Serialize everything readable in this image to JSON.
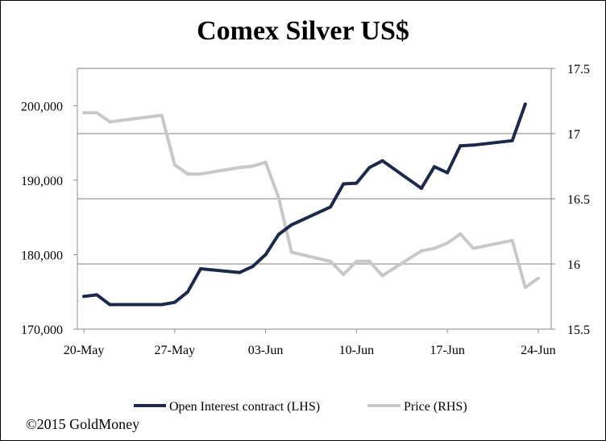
{
  "chart_data": {
    "type": "line",
    "title": "Comex Silver US$",
    "x_tick_labels": [
      "20-May",
      "27-May",
      "03-Jun",
      "10-Jun",
      "17-Jun",
      "24-Jun"
    ],
    "x_tick_days": [
      0,
      7,
      14,
      21,
      28,
      35
    ],
    "y_left": {
      "ticks": [
        "170,000",
        "180,000",
        "190,000",
        "200,000"
      ],
      "tick_values": [
        170000,
        180000,
        190000,
        200000
      ],
      "range": [
        170000,
        205000
      ]
    },
    "y_right": {
      "ticks": [
        "15.5",
        "16",
        "16.5",
        "17",
        "17.5"
      ],
      "tick_values": [
        15.5,
        16,
        16.5,
        17,
        17.5
      ],
      "range": [
        15.5,
        17.5
      ]
    },
    "grid": "horizontal",
    "legend_position": "bottom",
    "series": [
      {
        "name": "Open Interest contract (LHS)",
        "axis": "left",
        "color": "#1b2a4a",
        "points": [
          {
            "x": "2015-05-20",
            "y": 174400
          },
          {
            "x": "2015-05-21",
            "y": 174600
          },
          {
            "x": "2015-05-22",
            "y": 173300
          },
          {
            "x": "2015-05-26",
            "y": 173300
          },
          {
            "x": "2015-05-27",
            "y": 173600
          },
          {
            "x": "2015-05-28",
            "y": 175000
          },
          {
            "x": "2015-05-29",
            "y": 178100
          },
          {
            "x": "2015-06-01",
            "y": 177600
          },
          {
            "x": "2015-06-02",
            "y": 178400
          },
          {
            "x": "2015-06-03",
            "y": 180000
          },
          {
            "x": "2015-06-04",
            "y": 182700
          },
          {
            "x": "2015-06-05",
            "y": 184000
          },
          {
            "x": "2015-06-08",
            "y": 186400
          },
          {
            "x": "2015-06-09",
            "y": 189500
          },
          {
            "x": "2015-06-10",
            "y": 189600
          },
          {
            "x": "2015-06-11",
            "y": 191700
          },
          {
            "x": "2015-06-12",
            "y": 192600
          },
          {
            "x": "2015-06-15",
            "y": 188900
          },
          {
            "x": "2015-06-16",
            "y": 191800
          },
          {
            "x": "2015-06-17",
            "y": 191000
          },
          {
            "x": "2015-06-18",
            "y": 194600
          },
          {
            "x": "2015-06-19",
            "y": 194700
          },
          {
            "x": "2015-06-22",
            "y": 195300
          },
          {
            "x": "2015-06-23",
            "y": 200200
          }
        ]
      },
      {
        "name": "Price (RHS)",
        "axis": "right",
        "color": "#c8c8c8",
        "points": [
          {
            "x": "2015-05-20",
            "y": 17.16
          },
          {
            "x": "2015-05-21",
            "y": 17.16
          },
          {
            "x": "2015-05-22",
            "y": 17.09
          },
          {
            "x": "2015-05-26",
            "y": 17.14
          },
          {
            "x": "2015-05-27",
            "y": 16.76
          },
          {
            "x": "2015-05-28",
            "y": 16.69
          },
          {
            "x": "2015-05-29",
            "y": 16.69
          },
          {
            "x": "2015-06-01",
            "y": 16.74
          },
          {
            "x": "2015-06-02",
            "y": 16.75
          },
          {
            "x": "2015-06-03",
            "y": 16.78
          },
          {
            "x": "2015-06-04",
            "y": 16.51
          },
          {
            "x": "2015-06-05",
            "y": 16.09
          },
          {
            "x": "2015-06-08",
            "y": 16.02
          },
          {
            "x": "2015-06-09",
            "y": 15.92
          },
          {
            "x": "2015-06-10",
            "y": 16.02
          },
          {
            "x": "2015-06-11",
            "y": 16.02
          },
          {
            "x": "2015-06-12",
            "y": 15.91
          },
          {
            "x": "2015-06-15",
            "y": 16.1
          },
          {
            "x": "2015-06-16",
            "y": 16.12
          },
          {
            "x": "2015-06-17",
            "y": 16.16
          },
          {
            "x": "2015-06-18",
            "y": 16.23
          },
          {
            "x": "2015-06-19",
            "y": 16.12
          },
          {
            "x": "2015-06-22",
            "y": 16.18
          },
          {
            "x": "2015-06-23",
            "y": 15.82
          },
          {
            "x": "2015-06-24",
            "y": 15.89
          }
        ]
      }
    ]
  },
  "footer": {
    "copyright": "©2015 GoldMoney"
  }
}
